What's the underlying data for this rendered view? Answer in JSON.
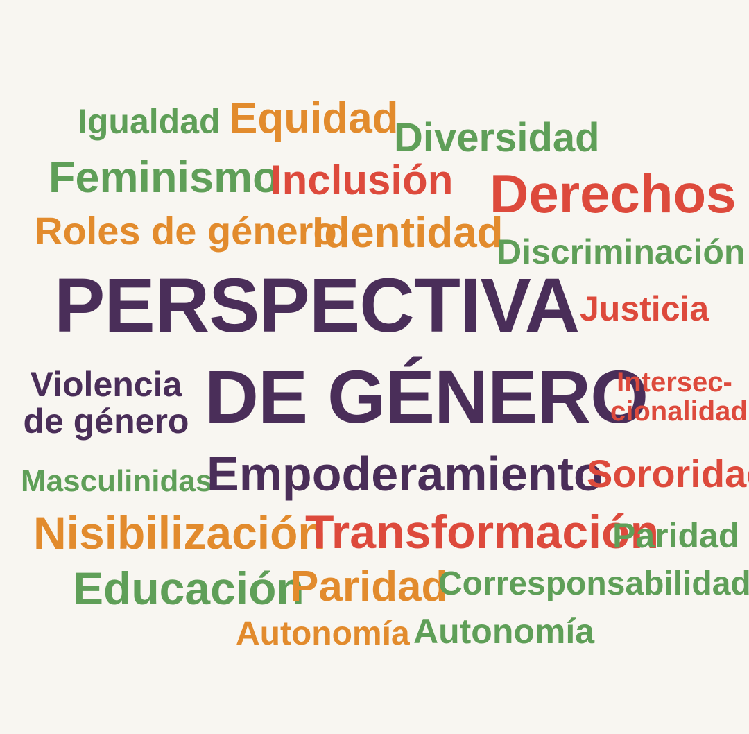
{
  "palette": {
    "background": "#f8f6f1",
    "green": "#5f9f58",
    "orange": "#e28b2d",
    "red": "#dd4a3c",
    "purple": "#4a2e59"
  },
  "words": {
    "igualdad": "Igualdad",
    "equidad": "Equidad",
    "diversidad": "Diversidad",
    "feminismo": "Feminismo",
    "inclusion": "Inclusión",
    "derechos": "Derechos",
    "roles": "Roles de género",
    "identidad": "Identidad",
    "discriminacion": "Discriminación",
    "perspectiva": "PERSPECTIVA",
    "justicia": "Justicia",
    "violencia_line1": "Violencia",
    "violencia_line2": "de género",
    "de_genero": "DE GÉNERO",
    "intersec_line1": "Intersec-",
    "intersec_line2": "cionalidad",
    "masculinidades": "Masculinidas",
    "empoderamiento": "Empoderamiento",
    "sororidad": "Sororidad",
    "nisibilizacion": "Nisibilización",
    "transformacion": "Transformación",
    "paridad_green": "Paridad",
    "educacion": "Educación",
    "paridad_orange": "Paridad",
    "corresponsabilidad": "Corresponsabilidad",
    "autonomia_orange": "Autonomía",
    "autonomia_green": "Autonomía"
  }
}
